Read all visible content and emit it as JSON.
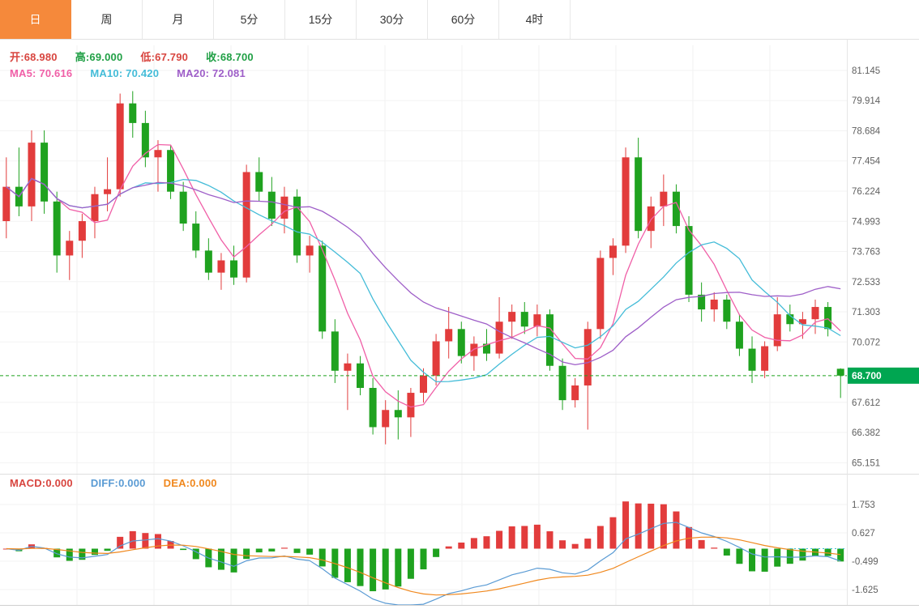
{
  "tabs": {
    "items": [
      {
        "label": "日"
      },
      {
        "label": "周"
      },
      {
        "label": "月"
      },
      {
        "label": "5分"
      },
      {
        "label": "15分"
      },
      {
        "label": "30分"
      },
      {
        "label": "60分"
      },
      {
        "label": "4时"
      }
    ],
    "active_index": 0,
    "active_bg": "#f5893b"
  },
  "ohlc_row": {
    "open": {
      "text": "开:68.980",
      "color": "#d8453f"
    },
    "high": {
      "text": "高:69.000",
      "color": "#21a046"
    },
    "low": {
      "text": "低:67.790",
      "color": "#d8453f"
    },
    "close": {
      "text": "收:68.700",
      "color": "#21a046"
    }
  },
  "ma_row": {
    "ma5": {
      "text": "MA5: 70.616",
      "color": "#f05fa7"
    },
    "ma10": {
      "text": "MA10: 70.420",
      "color": "#44bcd8"
    },
    "ma20": {
      "text": "MA20: 72.081",
      "color": "#9e5ec8"
    }
  },
  "macd_row": {
    "macd": {
      "text": "MACD:0.000",
      "color": "#d8453f"
    },
    "diff": {
      "text": "DIFF:0.000",
      "color": "#5a9bd4"
    },
    "dea": {
      "text": "DEA:0.000",
      "color": "#f0881e"
    }
  },
  "price_axis": {
    "ticks": [
      "81.145",
      "79.914",
      "78.684",
      "77.454",
      "76.224",
      "74.993",
      "73.763",
      "72.533",
      "71.303",
      "70.072",
      "67.612",
      "66.382",
      "65.151"
    ],
    "current": {
      "value": "68.700",
      "bg": "#00a651",
      "text_color": "#ffffff"
    }
  },
  "macd_axis": {
    "ticks": [
      "1.753",
      "0.627",
      "-0.499",
      "-1.625"
    ]
  },
  "chart_data": {
    "type": "candlestick",
    "title": "",
    "timeframe": "日",
    "ohlc_current": {
      "open": 68.98,
      "high": 69.0,
      "low": 67.79,
      "close": 68.7
    },
    "ma_values": {
      "ma5": 70.616,
      "ma10": 70.42,
      "ma20": 72.081
    },
    "ma_periods": [
      5,
      10,
      20
    ],
    "price_axis_ticks": [
      81.145,
      79.914,
      78.684,
      77.454,
      76.224,
      74.993,
      73.763,
      72.533,
      71.303,
      70.072,
      67.612,
      66.382,
      65.151
    ],
    "price_axis_range": [
      64.7,
      82.1
    ],
    "current_price": 68.7,
    "grid": true,
    "colors": {
      "up": "#e23c3c",
      "down": "#1fa21f"
    },
    "candles": [
      [
        75.0,
        77.6,
        74.3,
        76.4
      ],
      [
        76.4,
        78.0,
        75.2,
        75.6
      ],
      [
        75.6,
        78.7,
        75.0,
        78.2
      ],
      [
        78.2,
        78.7,
        75.3,
        75.8
      ],
      [
        75.8,
        76.2,
        72.9,
        73.6
      ],
      [
        73.6,
        74.6,
        72.6,
        74.2
      ],
      [
        74.2,
        75.3,
        73.5,
        75.0
      ],
      [
        75.0,
        76.4,
        74.3,
        76.1
      ],
      [
        76.1,
        77.6,
        75.4,
        76.3
      ],
      [
        76.3,
        80.2,
        76.0,
        79.8
      ],
      [
        79.8,
        80.3,
        78.4,
        79.0
      ],
      [
        79.0,
        79.5,
        77.2,
        77.6
      ],
      [
        77.6,
        78.3,
        76.2,
        77.9
      ],
      [
        77.9,
        78.1,
        75.9,
        76.2
      ],
      [
        76.2,
        76.6,
        74.6,
        74.9
      ],
      [
        74.9,
        75.4,
        73.5,
        73.8
      ],
      [
        73.8,
        74.3,
        72.6,
        72.9
      ],
      [
        72.9,
        73.7,
        72.2,
        73.4
      ],
      [
        73.4,
        74.0,
        72.4,
        72.7
      ],
      [
        72.7,
        77.3,
        72.5,
        77.0
      ],
      [
        77.0,
        77.6,
        75.8,
        76.2
      ],
      [
        76.2,
        76.8,
        74.8,
        75.1
      ],
      [
        75.1,
        76.4,
        74.5,
        76.0
      ],
      [
        76.0,
        76.3,
        73.3,
        73.6
      ],
      [
        73.6,
        74.4,
        72.9,
        74.0
      ],
      [
        74.0,
        74.2,
        70.2,
        70.5
      ],
      [
        70.5,
        71.0,
        68.4,
        68.9
      ],
      [
        68.9,
        69.6,
        67.3,
        69.2
      ],
      [
        69.2,
        69.5,
        67.9,
        68.2
      ],
      [
        68.2,
        68.6,
        66.3,
        66.6
      ],
      [
        66.6,
        67.7,
        65.9,
        67.3
      ],
      [
        67.3,
        68.1,
        66.1,
        67.0
      ],
      [
        67.0,
        68.2,
        66.2,
        68.0
      ],
      [
        68.0,
        69.0,
        67.6,
        68.7
      ],
      [
        68.7,
        70.4,
        68.3,
        70.1
      ],
      [
        70.1,
        71.5,
        69.4,
        70.6
      ],
      [
        70.6,
        70.9,
        69.2,
        69.5
      ],
      [
        69.5,
        70.3,
        68.9,
        70.0
      ],
      [
        70.0,
        70.6,
        69.3,
        69.6
      ],
      [
        69.6,
        71.9,
        69.4,
        70.9
      ],
      [
        70.9,
        71.6,
        70.2,
        71.3
      ],
      [
        71.3,
        71.7,
        70.4,
        70.7
      ],
      [
        70.7,
        71.6,
        70.3,
        71.2
      ],
      [
        71.2,
        71.4,
        68.9,
        69.1
      ],
      [
        69.1,
        69.4,
        67.3,
        67.7
      ],
      [
        67.7,
        68.6,
        67.4,
        68.3
      ],
      [
        68.3,
        70.9,
        66.5,
        70.6
      ],
      [
        70.6,
        73.8,
        70.2,
        73.5
      ],
      [
        73.5,
        74.3,
        72.8,
        74.0
      ],
      [
        74.0,
        78.0,
        73.7,
        77.6
      ],
      [
        77.6,
        78.4,
        74.3,
        74.6
      ],
      [
        74.6,
        76.0,
        73.9,
        75.6
      ],
      [
        75.6,
        76.9,
        74.8,
        76.2
      ],
      [
        76.2,
        76.5,
        74.5,
        74.8
      ],
      [
        74.8,
        75.2,
        71.7,
        72.0
      ],
      [
        72.0,
        72.5,
        70.9,
        71.4
      ],
      [
        71.4,
        72.1,
        70.9,
        71.8
      ],
      [
        71.8,
        72.0,
        70.6,
        70.9
      ],
      [
        70.9,
        71.2,
        69.5,
        69.8
      ],
      [
        69.8,
        70.3,
        68.4,
        68.9
      ],
      [
        68.9,
        70.1,
        68.6,
        69.9
      ],
      [
        69.9,
        71.9,
        69.7,
        71.2
      ],
      [
        71.2,
        71.6,
        70.5,
        70.8
      ],
      [
        70.8,
        71.3,
        70.2,
        71.0
      ],
      [
        71.0,
        71.8,
        70.4,
        71.5
      ],
      [
        71.5,
        71.7,
        70.3,
        70.6
      ],
      [
        68.98,
        69.0,
        67.79,
        68.7
      ]
    ],
    "macd": {
      "params": [
        12,
        26,
        9
      ],
      "displayed": {
        "macd": 0.0,
        "diff": 0.0,
        "dea": 0.0
      },
      "axis_ticks": [
        1.753,
        0.627,
        -0.499,
        -1.625
      ]
    }
  }
}
